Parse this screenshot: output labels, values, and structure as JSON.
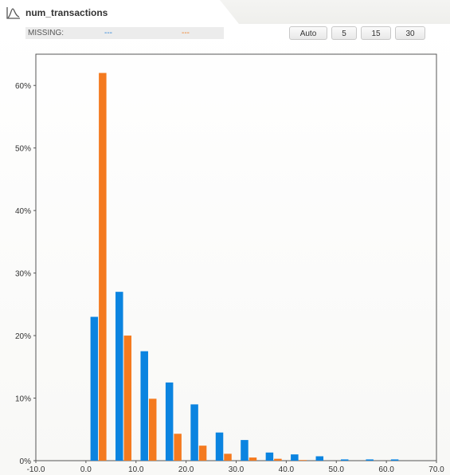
{
  "header": {
    "title": "num_transactions",
    "icon": "distribution-icon"
  },
  "missing": {
    "label": "MISSING:",
    "value_1": "---",
    "value_2": "---"
  },
  "bin_buttons": [
    "Auto",
    "5",
    "15",
    "30"
  ],
  "colors": {
    "series_1": "#0b84e0",
    "series_2": "#f47a1f"
  },
  "chart_data": {
    "type": "bar",
    "x_ticks": [
      "-10.0",
      "0.0",
      "10.0",
      "20.0",
      "30.0",
      "40.0",
      "50.0",
      "60.0",
      "70.0"
    ],
    "y_ticks": [
      "0%",
      "10%",
      "20%",
      "30%",
      "40%",
      "50%",
      "60%"
    ],
    "xlim": [
      -10,
      70
    ],
    "ylim": [
      0,
      65
    ],
    "bin_centers": [
      2.5,
      7.5,
      12.5,
      17.5,
      22.5,
      27.5,
      32.5,
      37.5,
      42.5,
      47.5,
      52.5,
      57.5,
      62.5
    ],
    "series": [
      {
        "values": [
          23,
          27,
          17.5,
          12.5,
          9,
          4.5,
          3.3,
          1.3,
          1.0,
          0.7,
          0.2,
          0.2,
          0.2
        ]
      },
      {
        "values": [
          62,
          20,
          9.9,
          4.3,
          2.4,
          1.1,
          0.5,
          0.3,
          0.1,
          0,
          0,
          0,
          0
        ]
      }
    ],
    "grid": false
  }
}
